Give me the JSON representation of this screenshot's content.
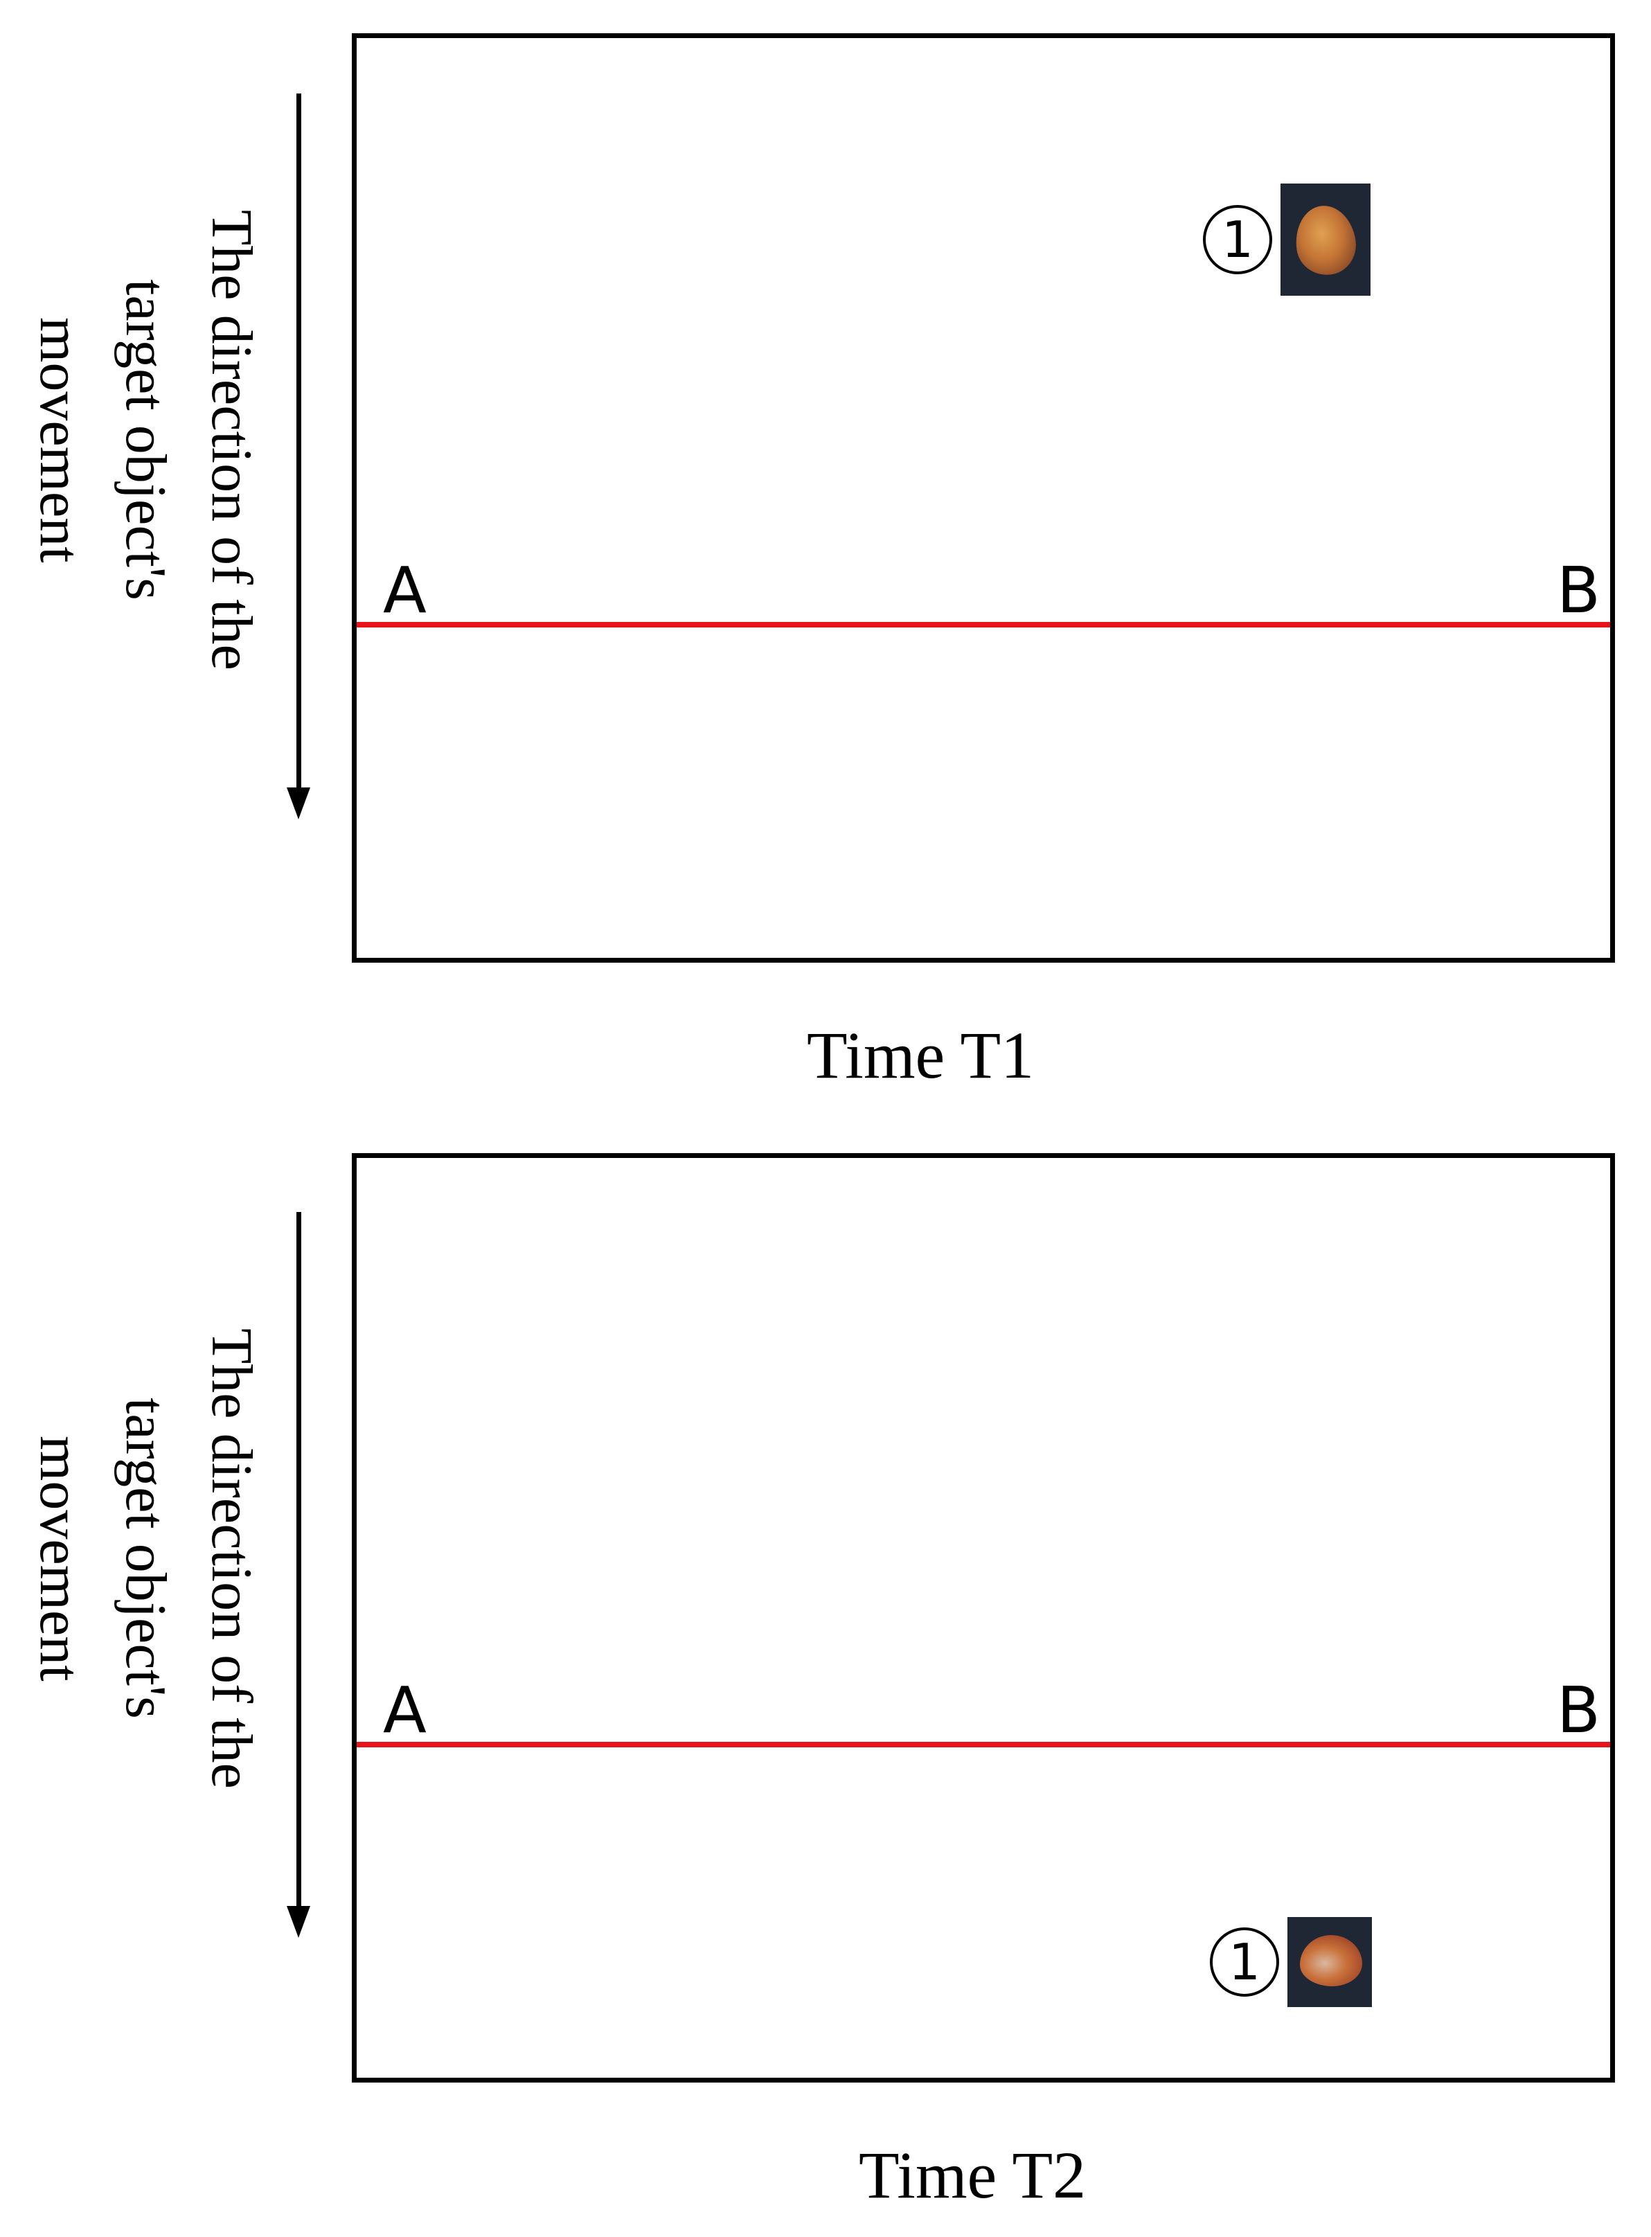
{
  "panels": [
    {
      "caption": "Time T1",
      "direction_label": "The direction of the\ntarget object's\nmovement",
      "line_start_label": "A",
      "line_end_label": "B",
      "object_number": "①"
    },
    {
      "caption": "Time T2",
      "direction_label": "The direction of the\ntarget object's\nmovement",
      "line_start_label": "A",
      "line_end_label": "B",
      "object_number": "①"
    }
  ],
  "colors": {
    "detection_line": "#e8141b",
    "frame_border": "#000000",
    "object_background": "#1e2733"
  },
  "icons": {
    "direction_arrow": "down-arrow-icon",
    "object_marker": "circled-number-one"
  }
}
